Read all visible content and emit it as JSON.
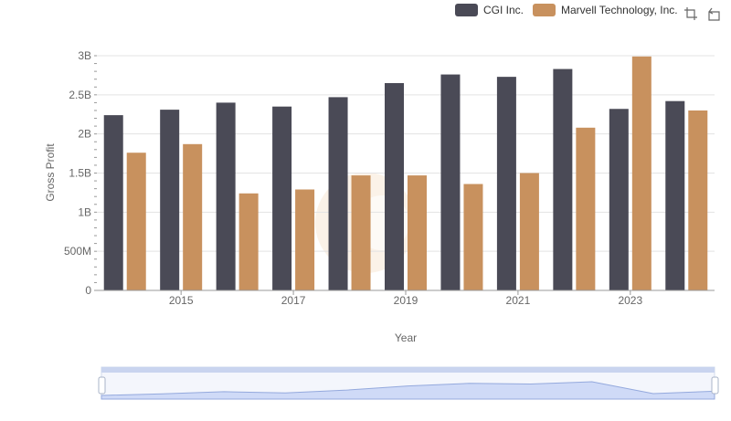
{
  "legend": {
    "items": [
      {
        "label": "CGI Inc.",
        "color": "#4a4a56"
      },
      {
        "label": "Marvell Technology, Inc.",
        "color": "#c8915e"
      }
    ]
  },
  "toolbar": {
    "icons": [
      "zoom-select-icon",
      "zoom-reset-icon"
    ]
  },
  "chart_data": {
    "type": "bar",
    "xlabel": "Year",
    "ylabel": "Gross Profit",
    "ylim": [
      0,
      3000000000
    ],
    "yticks": [
      {
        "value": 0,
        "label": "0"
      },
      {
        "value": 500000000,
        "label": "500M"
      },
      {
        "value": 1000000000,
        "label": "1B"
      },
      {
        "value": 1500000000,
        "label": "1.5B"
      },
      {
        "value": 2000000000,
        "label": "2B"
      },
      {
        "value": 2500000000,
        "label": "2.5B"
      },
      {
        "value": 3000000000,
        "label": "3B"
      }
    ],
    "categories": [
      "2014",
      "2015",
      "2016",
      "2017",
      "2018",
      "2019",
      "2020",
      "2021",
      "2022",
      "2023",
      "2024"
    ],
    "xtick_labels": [
      "2015",
      "2017",
      "2019",
      "2021",
      "2023"
    ],
    "series": [
      {
        "name": "CGI Inc.",
        "color": "#4a4a56",
        "values": [
          2240000000,
          2310000000,
          2400000000,
          2350000000,
          2470000000,
          2650000000,
          2760000000,
          2730000000,
          2830000000,
          2320000000,
          2420000000
        ]
      },
      {
        "name": "Marvell Technology, Inc.",
        "color": "#c8915e",
        "values": [
          1760000000,
          1870000000,
          1240000000,
          1290000000,
          1470000000,
          1470000000,
          1360000000,
          1500000000,
          2080000000,
          2990000000,
          2300000000
        ]
      }
    ],
    "grid": true,
    "legend_position": "top-right",
    "overview": {
      "series_index": 0
    }
  }
}
